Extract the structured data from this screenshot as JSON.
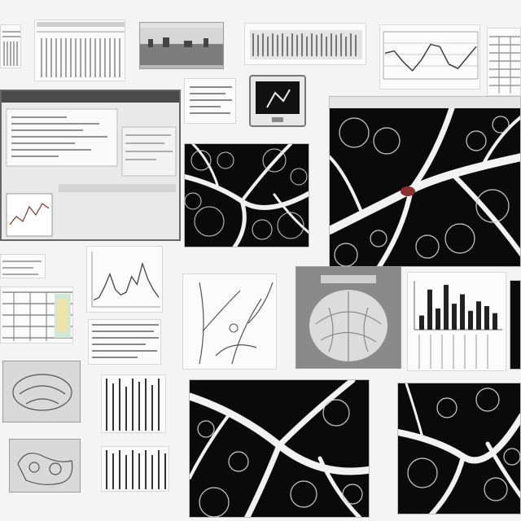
{
  "colors": {
    "background": "#f4f4f4",
    "dark": "#0a0a0a",
    "vein": "#f2f2f2",
    "line": "#333333",
    "accent_red": "#8b2f2f"
  },
  "tile_count": 26,
  "chart_data": [
    {
      "type": "line",
      "x": [
        0,
        1,
        2,
        3,
        4,
        5,
        6,
        7,
        8,
        9,
        10
      ],
      "y": [
        0.55,
        0.6,
        0.35,
        0.15,
        0.4,
        0.75,
        0.7,
        0.3,
        0.2,
        0.45,
        0.7
      ]
    },
    {
      "type": "line",
      "x": [
        0,
        1,
        2,
        3,
        4,
        5,
        6,
        7,
        8,
        9,
        10,
        11,
        12
      ],
      "y": [
        0.1,
        0.15,
        0.35,
        0.6,
        0.3,
        0.2,
        0.25,
        0.55,
        0.4,
        0.8,
        0.5,
        0.3,
        0.15
      ]
    },
    {
      "type": "bar",
      "values": [
        0.3,
        0.85,
        0.45,
        0.95,
        0.55,
        0.75,
        0.4,
        0.6,
        0.5,
        0.35
      ]
    }
  ]
}
